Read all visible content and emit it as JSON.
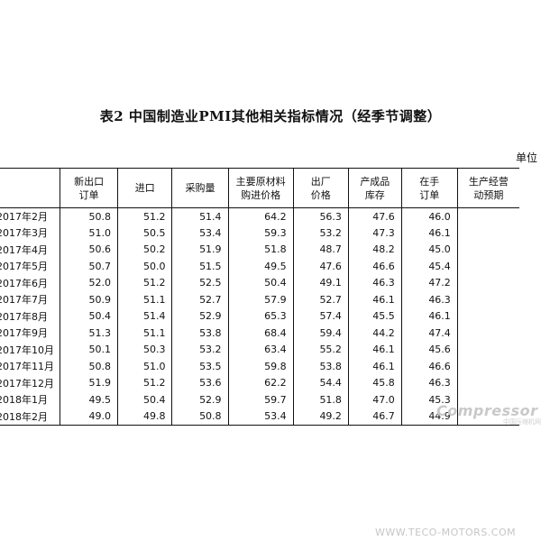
{
  "title": "表2  中国制造业PMI其他相关指标情况（经季节调整）",
  "unit_label": "单位",
  "columns": [
    {
      "line1": "",
      "line2": ""
    },
    {
      "line1": "新出口",
      "line2": "订单"
    },
    {
      "line1": "进口",
      "line2": ""
    },
    {
      "line1": "采购量",
      "line2": ""
    },
    {
      "line1": "主要原材料",
      "line2": "购进价格"
    },
    {
      "line1": "出厂",
      "line2": "价格"
    },
    {
      "line1": "产成品",
      "line2": "库存"
    },
    {
      "line1": "在手",
      "line2": "订单"
    },
    {
      "line1": "生产经营",
      "line2": "动预期"
    }
  ],
  "rows": [
    {
      "month": "2017年2月",
      "values": [
        "50.8",
        "51.2",
        "51.4",
        "64.2",
        "56.3",
        "47.6",
        "46.0",
        ""
      ]
    },
    {
      "month": "2017年3月",
      "values": [
        "51.0",
        "50.5",
        "53.4",
        "59.3",
        "53.2",
        "47.3",
        "46.1",
        ""
      ]
    },
    {
      "month": "2017年4月",
      "values": [
        "50.6",
        "50.2",
        "51.9",
        "51.8",
        "48.7",
        "48.2",
        "45.0",
        ""
      ]
    },
    {
      "month": "2017年5月",
      "values": [
        "50.7",
        "50.0",
        "51.5",
        "49.5",
        "47.6",
        "46.6",
        "45.4",
        ""
      ]
    },
    {
      "month": "2017年6月",
      "values": [
        "52.0",
        "51.2",
        "52.5",
        "50.4",
        "49.1",
        "46.3",
        "47.2",
        ""
      ]
    },
    {
      "month": "2017年7月",
      "values": [
        "50.9",
        "51.1",
        "52.7",
        "57.9",
        "52.7",
        "46.1",
        "46.3",
        ""
      ]
    },
    {
      "month": "2017年8月",
      "values": [
        "50.4",
        "51.4",
        "52.9",
        "65.3",
        "57.4",
        "45.5",
        "46.1",
        ""
      ]
    },
    {
      "month": "2017年9月",
      "values": [
        "51.3",
        "51.1",
        "53.8",
        "68.4",
        "59.4",
        "44.2",
        "47.4",
        ""
      ]
    },
    {
      "month": "2017年10月",
      "values": [
        "50.1",
        "50.3",
        "53.2",
        "63.4",
        "55.2",
        "46.1",
        "45.6",
        ""
      ]
    },
    {
      "month": "2017年11月",
      "values": [
        "50.8",
        "51.0",
        "53.5",
        "59.8",
        "53.8",
        "46.1",
        "46.6",
        ""
      ]
    },
    {
      "month": "2017年12月",
      "values": [
        "51.9",
        "51.2",
        "53.6",
        "62.2",
        "54.4",
        "45.8",
        "46.3",
        ""
      ]
    },
    {
      "month": "2018年1月",
      "values": [
        "49.5",
        "50.4",
        "52.9",
        "59.7",
        "51.8",
        "47.0",
        "45.3",
        ""
      ]
    },
    {
      "month": "2018年2月",
      "values": [
        "49.0",
        "49.8",
        "50.8",
        "53.4",
        "49.2",
        "46.7",
        "44.9",
        ""
      ]
    }
  ],
  "watermarks": {
    "logo": "Compressor",
    "logo_sub": "中国压缩机网",
    "site": "WWW.TECO-MOTORS.COM"
  }
}
